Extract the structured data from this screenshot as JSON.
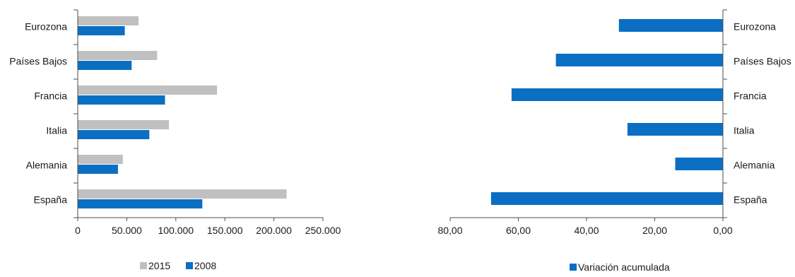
{
  "colors": {
    "series_2015": "#c0c0c0",
    "series_2008": "#0a6fc2",
    "axis": "#4d4d4d"
  },
  "chart_data": [
    {
      "type": "bar",
      "orientation": "horizontal",
      "categories": [
        "Eurozona",
        "Países Bajos",
        "Francia",
        "Italia",
        "Alemania",
        "España"
      ],
      "series": [
        {
          "name": "2015",
          "values": [
            62000,
            81000,
            142000,
            93000,
            46000,
            213000
          ]
        },
        {
          "name": "2008",
          "values": [
            48000,
            55000,
            89000,
            73000,
            41000,
            127000
          ]
        }
      ],
      "xlim": [
        0,
        250000
      ],
      "xticks": [
        0,
        50000,
        100000,
        150000,
        200000,
        250000
      ],
      "xtick_labels": [
        "0",
        "50.000",
        "100.000",
        "150.000",
        "200.000",
        "250.000"
      ],
      "legend_position": "bottom",
      "grid": false
    },
    {
      "type": "bar",
      "orientation": "horizontal",
      "categories": [
        "Eurozona",
        "Países Bajos",
        "Francia",
        "Italia",
        "Alemania",
        "España"
      ],
      "series": [
        {
          "name": "Variación acumulada",
          "values": [
            -30.5,
            -49,
            -62,
            -28,
            -14,
            -68
          ]
        }
      ],
      "xlim": [
        -80,
        0
      ],
      "xticks": [
        -80,
        -60,
        -40,
        -20,
        0
      ],
      "xtick_labels": [
        "80,00",
        "60,00",
        "40,00",
        "20,00",
        "0,00"
      ],
      "x_reversed_magnitude": true,
      "category_labels_side": "right",
      "legend_position": "bottom",
      "grid": false
    }
  ]
}
